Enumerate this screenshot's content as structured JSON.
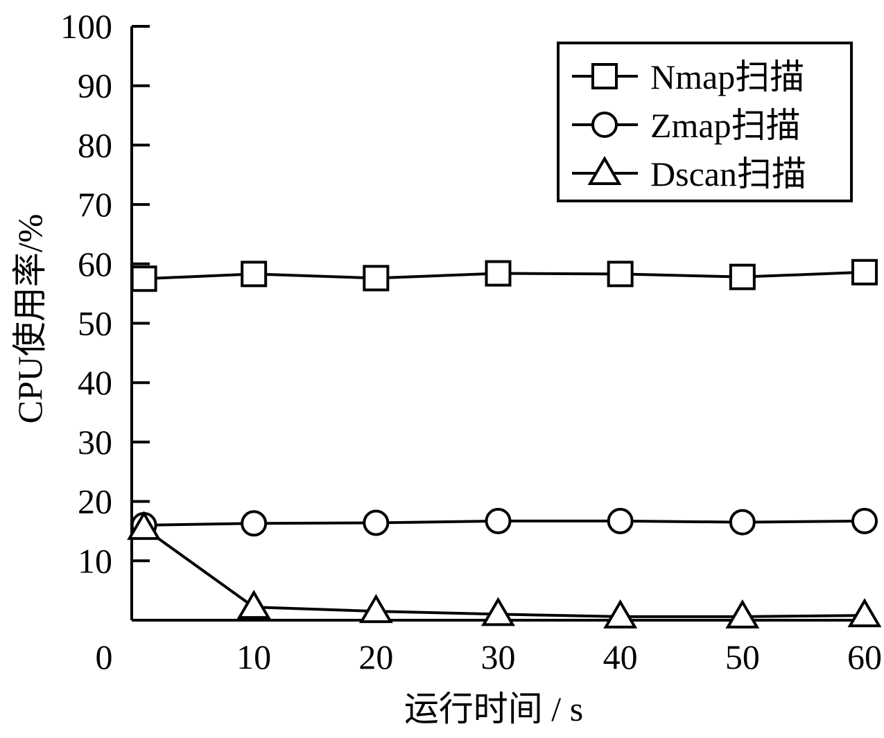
{
  "chart_data": {
    "type": "line",
    "title": "",
    "xlabel": "运行时间 / s",
    "ylabel": "CPU使用率/%",
    "x": [
      1,
      10,
      20,
      30,
      40,
      50,
      60
    ],
    "x_ticks": [
      0,
      10,
      20,
      30,
      40,
      50,
      60
    ],
    "y_ticks": [
      10,
      20,
      30,
      40,
      50,
      60,
      70,
      80,
      90,
      100
    ],
    "xlim": [
      0,
      60
    ],
    "ylim": [
      0,
      100
    ],
    "grid": false,
    "legend_position": "top-right",
    "series": [
      {
        "name": "Nmap扫描",
        "marker": "square",
        "values": [
          57.5,
          58.3,
          57.6,
          58.4,
          58.3,
          57.8,
          58.6
        ]
      },
      {
        "name": "Zmap扫描",
        "marker": "circle",
        "values": [
          16.0,
          16.3,
          16.4,
          16.7,
          16.7,
          16.5,
          16.7
        ]
      },
      {
        "name": "Dscan扫描",
        "marker": "triangle",
        "values": [
          15.5,
          2.2,
          1.5,
          1.0,
          0.6,
          0.6,
          0.8
        ]
      }
    ],
    "colors": {
      "line": "#000000",
      "marker_fill": "#ffffff"
    }
  }
}
